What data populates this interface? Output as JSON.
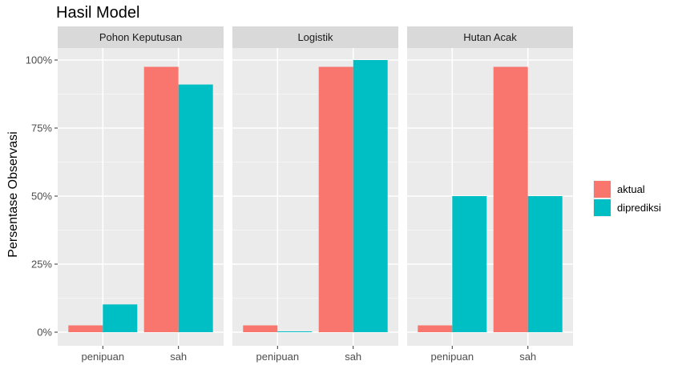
{
  "title": "Hasil Model",
  "chart_data": {
    "type": "bar",
    "title": "Hasil Model",
    "ylabel": "Persentase Observasi",
    "xlabel": "",
    "ylim": [
      0,
      105
    ],
    "yticks": [
      0,
      25,
      50,
      75,
      100
    ],
    "ytick_labels": [
      "0%",
      "25%",
      "50%",
      "75%",
      "100%"
    ],
    "categories": [
      "penipuan",
      "sah"
    ],
    "grid": true,
    "legend_position": "right",
    "series": [
      {
        "name": "aktual",
        "color": "#F8766D"
      },
      {
        "name": "diprediksi",
        "color": "#00BFC4"
      }
    ],
    "facets": [
      {
        "label": "Pohon Keputusan",
        "values": {
          "aktual": [
            2.5,
            97.5
          ],
          "diprediksi": [
            10.2,
            91.0
          ]
        }
      },
      {
        "label": "Logistik",
        "values": {
          "aktual": [
            2.5,
            97.5
          ],
          "diprediksi": [
            0.3,
            100.0
          ]
        }
      },
      {
        "label": "Hutan Acak",
        "values": {
          "aktual": [
            2.5,
            97.5
          ],
          "diprediksi": [
            50.0,
            50.0
          ]
        }
      }
    ]
  }
}
